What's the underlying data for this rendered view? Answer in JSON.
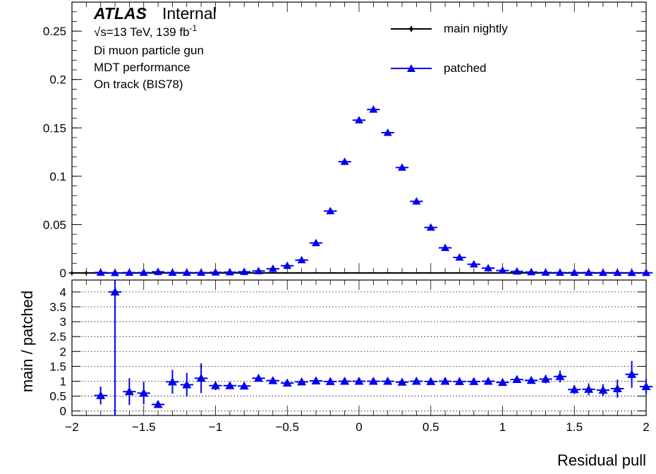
{
  "chart_data": [
    {
      "type": "scatter",
      "panel": "top",
      "xlim": [
        -2,
        2
      ],
      "ylim": [
        0,
        0.28
      ],
      "yticks": [
        {
          "v": 0,
          "label": "0"
        },
        {
          "v": 0.05,
          "label": "0.05"
        },
        {
          "v": 0.1,
          "label": "0.1"
        },
        {
          "v": 0.15,
          "label": "0.15"
        },
        {
          "v": 0.2,
          "label": "0.2"
        },
        {
          "v": 0.25,
          "label": "0.25"
        }
      ],
      "bin_width": 0.1,
      "x": [
        -2.0,
        -1.9,
        -1.8,
        -1.7,
        -1.6,
        -1.5,
        -1.4,
        -1.3,
        -1.2,
        -1.1,
        -1.0,
        -0.9,
        -0.8,
        -0.7,
        -0.6,
        -0.5,
        -0.4,
        -0.3,
        -0.2,
        -0.1,
        0.0,
        0.1,
        0.2,
        0.3,
        0.4,
        0.5,
        0.6,
        0.7,
        0.8,
        0.9,
        1.0,
        1.1,
        1.2,
        1.3,
        1.4,
        1.5,
        1.6,
        1.7,
        1.8,
        1.9,
        2.0
      ],
      "series": [
        {
          "name": "main nightly",
          "color": "#000000",
          "marker": "star",
          "values": [
            0,
            0,
            0.0003,
            0.0003,
            0.0003,
            0.0003,
            0.0003,
            0.0004,
            0.0004,
            0.0005,
            0.0006,
            0.0008,
            0.0011,
            0.0022,
            0.0045,
            0.007,
            0.0135,
            0.031,
            0.064,
            0.115,
            0.158,
            0.169,
            0.145,
            0.109,
            0.074,
            0.047,
            0.026,
            0.016,
            0.009,
            0.005,
            0.0025,
            0.0017,
            0.0009,
            0.0005,
            0.0004,
            0.0003,
            0.0003,
            0.0002,
            0.0002,
            0.0002,
            0.0002
          ]
        },
        {
          "name": "patched",
          "color": "#0000ee",
          "marker": "triangle",
          "values": [
            0,
            0,
            0.0005,
            0.0001,
            0.0004,
            0.0004,
            0.0012,
            0.0004,
            0.0004,
            0.0004,
            0.0006,
            0.0008,
            0.0012,
            0.002,
            0.0044,
            0.0075,
            0.0133,
            0.031,
            0.064,
            0.115,
            0.158,
            0.169,
            0.145,
            0.109,
            0.074,
            0.047,
            0.026,
            0.016,
            0.009,
            0.005,
            0.0025,
            0.0016,
            0.0009,
            0.0005,
            0.0004,
            0.0004,
            0.0004,
            0.0003,
            0.0003,
            0.0002,
            0.0002
          ]
        }
      ]
    },
    {
      "type": "scatter",
      "panel": "ratio",
      "ylabel": "main / patched",
      "xlabel": "Residual pull",
      "xlim": [
        -2,
        2
      ],
      "ylim": [
        -0.15,
        4.4
      ],
      "grid": true,
      "yticks": [
        {
          "v": 0,
          "label": "0"
        },
        {
          "v": 0.5,
          "label": "0.5"
        },
        {
          "v": 1,
          "label": "1"
        },
        {
          "v": 1.5,
          "label": "1.5"
        },
        {
          "v": 2,
          "label": "2"
        },
        {
          "v": 2.5,
          "label": "2.5"
        },
        {
          "v": 3,
          "label": "3"
        },
        {
          "v": 3.5,
          "label": "3.5"
        },
        {
          "v": 4,
          "label": "4"
        }
      ],
      "xticks": [
        {
          "v": -2,
          "label": "−2"
        },
        {
          "v": -1.5,
          "label": "−1.5"
        },
        {
          "v": -1,
          "label": "−1"
        },
        {
          "v": -0.5,
          "label": "−0.5"
        },
        {
          "v": 0,
          "label": "0"
        },
        {
          "v": 0.5,
          "label": "0.5"
        },
        {
          "v": 1,
          "label": "1"
        },
        {
          "v": 1.5,
          "label": "1.5"
        },
        {
          "v": 2,
          "label": "2"
        }
      ],
      "x": [
        -1.8,
        -1.7,
        -1.6,
        -1.5,
        -1.4,
        -1.3,
        -1.2,
        -1.1,
        -1.0,
        -0.9,
        -0.8,
        -0.7,
        -0.6,
        -0.5,
        -0.4,
        -0.3,
        -0.2,
        -0.1,
        0.0,
        0.1,
        0.2,
        0.3,
        0.4,
        0.5,
        0.6,
        0.7,
        0.8,
        0.9,
        1.0,
        1.1,
        1.2,
        1.3,
        1.4,
        1.5,
        1.6,
        1.7,
        1.8,
        1.9,
        2.0
      ],
      "values": [
        0.52,
        4.0,
        0.65,
        0.6,
        0.22,
        0.98,
        0.88,
        1.1,
        0.85,
        0.85,
        0.84,
        1.1,
        1.02,
        0.94,
        0.98,
        1.01,
        0.99,
        1.0,
        1.0,
        1.0,
        1.0,
        0.97,
        1.0,
        0.99,
        1.0,
        0.99,
        0.99,
        1.0,
        0.96,
        1.06,
        1.03,
        1.07,
        1.16,
        0.72,
        0.73,
        0.7,
        0.75,
        1.23,
        0.82
      ],
      "errors": [
        0.3,
        4.5,
        0.45,
        0.38,
        0.12,
        0.4,
        0.4,
        0.5,
        0.15,
        0.12,
        0.12,
        0.09,
        0.06,
        0.04,
        0.03,
        0.03,
        0.03,
        0.02,
        0.02,
        0.02,
        0.02,
        0.02,
        0.02,
        0.03,
        0.03,
        0.04,
        0.04,
        0.04,
        0.05,
        0.08,
        0.1,
        0.14,
        0.2,
        0.15,
        0.2,
        0.2,
        0.3,
        0.45,
        0.25
      ],
      "color": "#0000ee"
    }
  ],
  "labels": {
    "atlas": "ATLAS",
    "internal": "Internal",
    "energy_sqrt": "√s",
    "energy_rest": "=13 TeV, 139 fb",
    "energy_sup": "-1",
    "line1": "Di muon particle gun",
    "line2": "MDT performance",
    "line3": "On track (BIS78)"
  }
}
